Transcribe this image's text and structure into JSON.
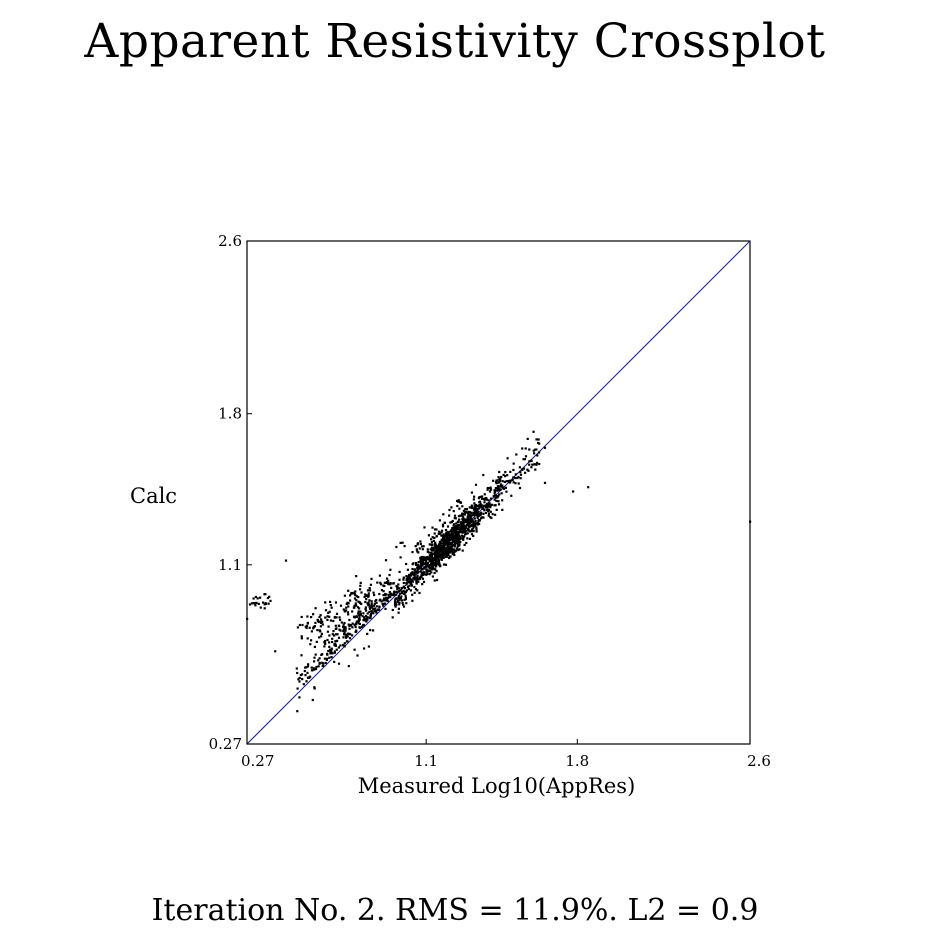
{
  "title": "Apparent Resistivity Crossplot",
  "footer": "Iteration No. 2.  RMS = 11.9%.  L2 = 0.9",
  "colors": {
    "points": "#000000",
    "reference_line": "#1a1a8c",
    "frame": "#000000"
  },
  "chart_data": {
    "type": "scatter",
    "title": "Apparent Resistivity Crossplot",
    "xlabel": "Measured Log10(AppRes)",
    "ylabel": "Calc",
    "xlim": [
      0.27,
      2.6
    ],
    "ylim": [
      0.27,
      2.6
    ],
    "xticks": [
      0.27,
      1.1,
      1.8,
      2.6
    ],
    "yticks": [
      0.27,
      1.1,
      1.8,
      2.6
    ],
    "xtick_labels": [
      "0.27",
      "1.1",
      "1.8",
      "2.6"
    ],
    "ytick_labels": [
      "0.27",
      "1.1",
      "1.8",
      "2.6"
    ],
    "reference_line": {
      "from": [
        0.27,
        0.27
      ],
      "to": [
        2.6,
        2.6
      ]
    },
    "grid": false,
    "point_count_estimate": 1500,
    "main_cluster": {
      "x_range": [
        0.5,
        1.65
      ],
      "y_range": [
        0.5,
        1.68
      ],
      "spread_below_x": 0.15,
      "spread_above_x": 0.08
    },
    "secondary_cluster": {
      "x_center": 0.33,
      "y_center": 0.93,
      "x_spread": 0.08,
      "y_spread": 0.04,
      "count": 25
    },
    "outliers": [
      {
        "x": 0.45,
        "y": 1.12
      },
      {
        "x": 1.85,
        "y": 1.46
      },
      {
        "x": 1.65,
        "y": 1.48
      },
      {
        "x": 1.78,
        "y": 1.44
      },
      {
        "x": 2.6,
        "y": 1.3
      },
      {
        "x": 0.4,
        "y": 0.7
      },
      {
        "x": 0.27,
        "y": 0.85
      },
      {
        "x": 1.15,
        "y": 1.03
      }
    ]
  }
}
